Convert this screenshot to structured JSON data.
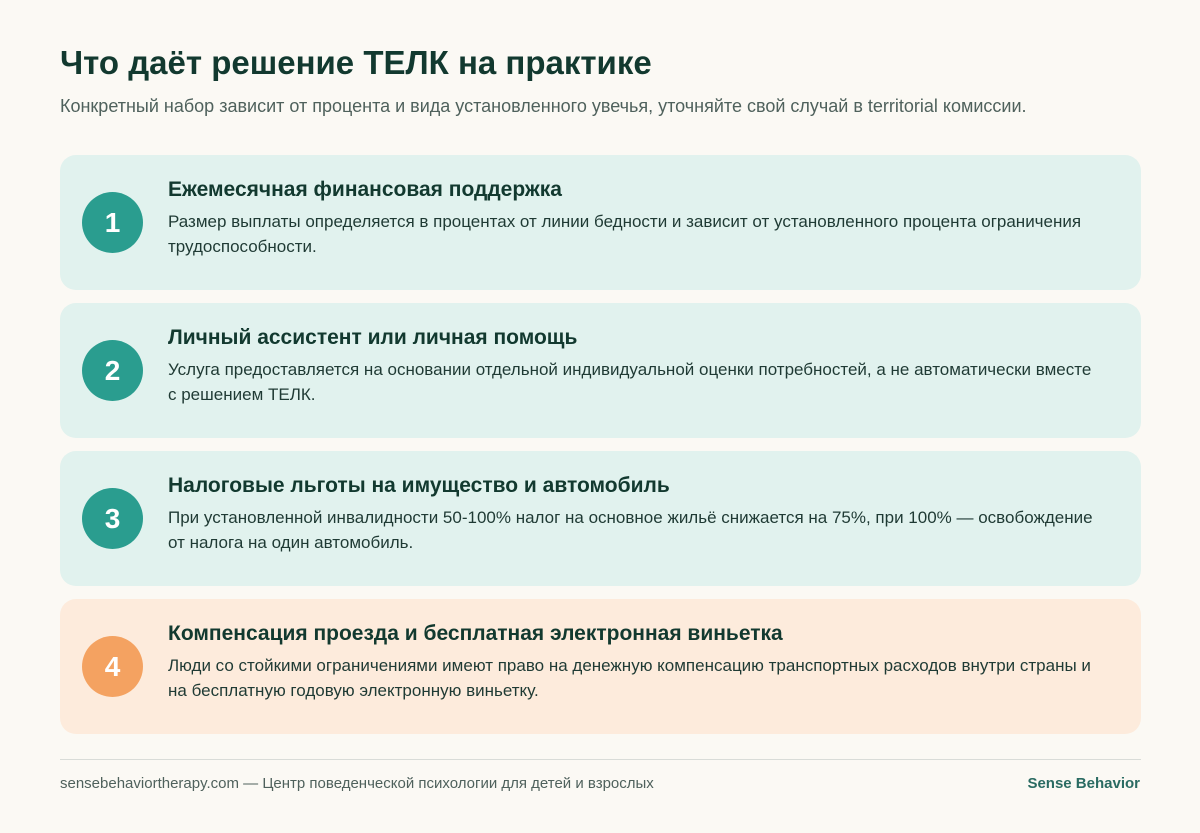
{
  "header": {
    "title": "Что даёт решение ТЕЛК на практике",
    "subtitle": "Конкретный набор зависит от процента и вида установленного увечья, уточняйте свой случай в territorial комиссии."
  },
  "cards": [
    {
      "number": "1",
      "title": "Ежемесячная финансовая поддержка",
      "text": "Размер выплаты определяется в процентах от линии бедности и зависит от установленного процента ограничения трудоспособности."
    },
    {
      "number": "2",
      "title": "Личный ассистент или личная помощь",
      "text": "Услуга предоставляется на основании отдельной индивидуальной оценки потребностей, а не автоматически вместе с решением ТЕЛК."
    },
    {
      "number": "3",
      "title": "Налоговые льготы на имущество и автомобиль",
      "text": "При установленной инвалидности 50-100% налог на основное жильё снижается на 75%, при 100% — освобождение от налога на один автомобиль."
    },
    {
      "number": "4",
      "title": "Компенсация проезда и бесплатная электронная виньетка",
      "text": "Люди со стойкими ограничениями имеют право на денежную компенсацию транспортных расходов внутри страны и на бесплатную годовую электронную виньетку."
    }
  ],
  "footer": {
    "source": "sensebehaviortherapy.com — Центр поведенческой психологии для детей и взрослых",
    "brand": "Sense Behavior"
  },
  "colors": {
    "background": "#fbf9f4",
    "accent_teal": "#2a9d8f",
    "accent_orange": "#f4a261",
    "card_teal_bg": "#e1f2ee",
    "card_warm_bg": "#fdebdc",
    "heading": "#12392f"
  }
}
